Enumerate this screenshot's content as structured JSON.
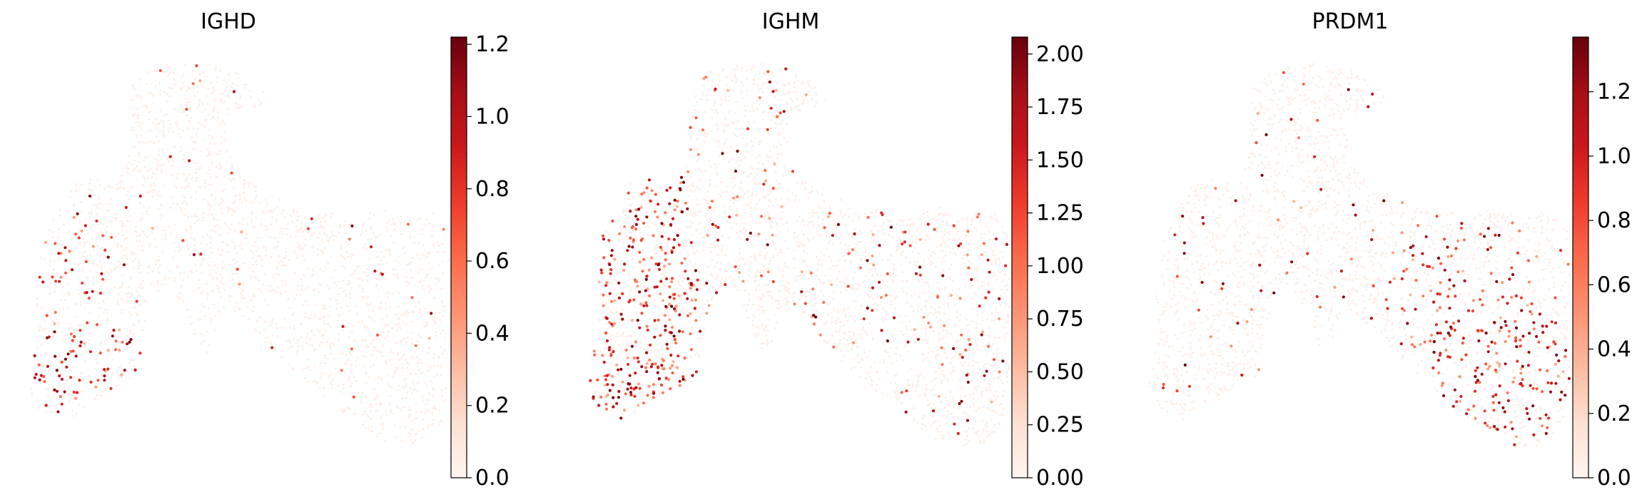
{
  "figure": {
    "background": "#ffffff",
    "colormap": "Reds"
  },
  "chart_data": [
    {
      "type": "scatter",
      "title": "IGHD",
      "xlabel": "",
      "ylabel": "",
      "axes_visible": false,
      "colorbar": {
        "min": 0.0,
        "max": 1.22,
        "ticks": [
          0.0,
          0.2,
          0.4,
          0.6,
          0.8,
          1.0,
          1.2
        ],
        "tick_labels": [
          "0.0",
          "0.2",
          "0.4",
          "0.6",
          "0.8",
          "1.0",
          "1.2"
        ]
      },
      "expression_hotspot": "lower-left cluster",
      "x": [],
      "y": [],
      "values": []
    },
    {
      "type": "scatter",
      "title": "IGHM",
      "xlabel": "",
      "ylabel": "",
      "axes_visible": false,
      "colorbar": {
        "min": 0.0,
        "max": 2.08,
        "ticks": [
          0.0,
          0.25,
          0.5,
          0.75,
          1.0,
          1.25,
          1.5,
          1.75,
          2.0
        ],
        "tick_labels": [
          "0.00",
          "0.25",
          "0.50",
          "0.75",
          "1.00",
          "1.25",
          "1.50",
          "1.75",
          "2.00"
        ]
      },
      "expression_hotspot": "left arm cluster",
      "x": [],
      "y": [],
      "values": []
    },
    {
      "type": "scatter",
      "title": "PRDM1",
      "xlabel": "",
      "ylabel": "",
      "axes_visible": false,
      "colorbar": {
        "min": 0.0,
        "max": 1.37,
        "ticks": [
          0.0,
          0.2,
          0.4,
          0.6,
          0.8,
          1.0,
          1.2
        ],
        "tick_labels": [
          "0.0",
          "0.2",
          "0.4",
          "0.6",
          "0.8",
          "1.0",
          "1.2"
        ]
      },
      "expression_hotspot": "lower-right cluster",
      "x": [],
      "y": [],
      "values": []
    }
  ]
}
